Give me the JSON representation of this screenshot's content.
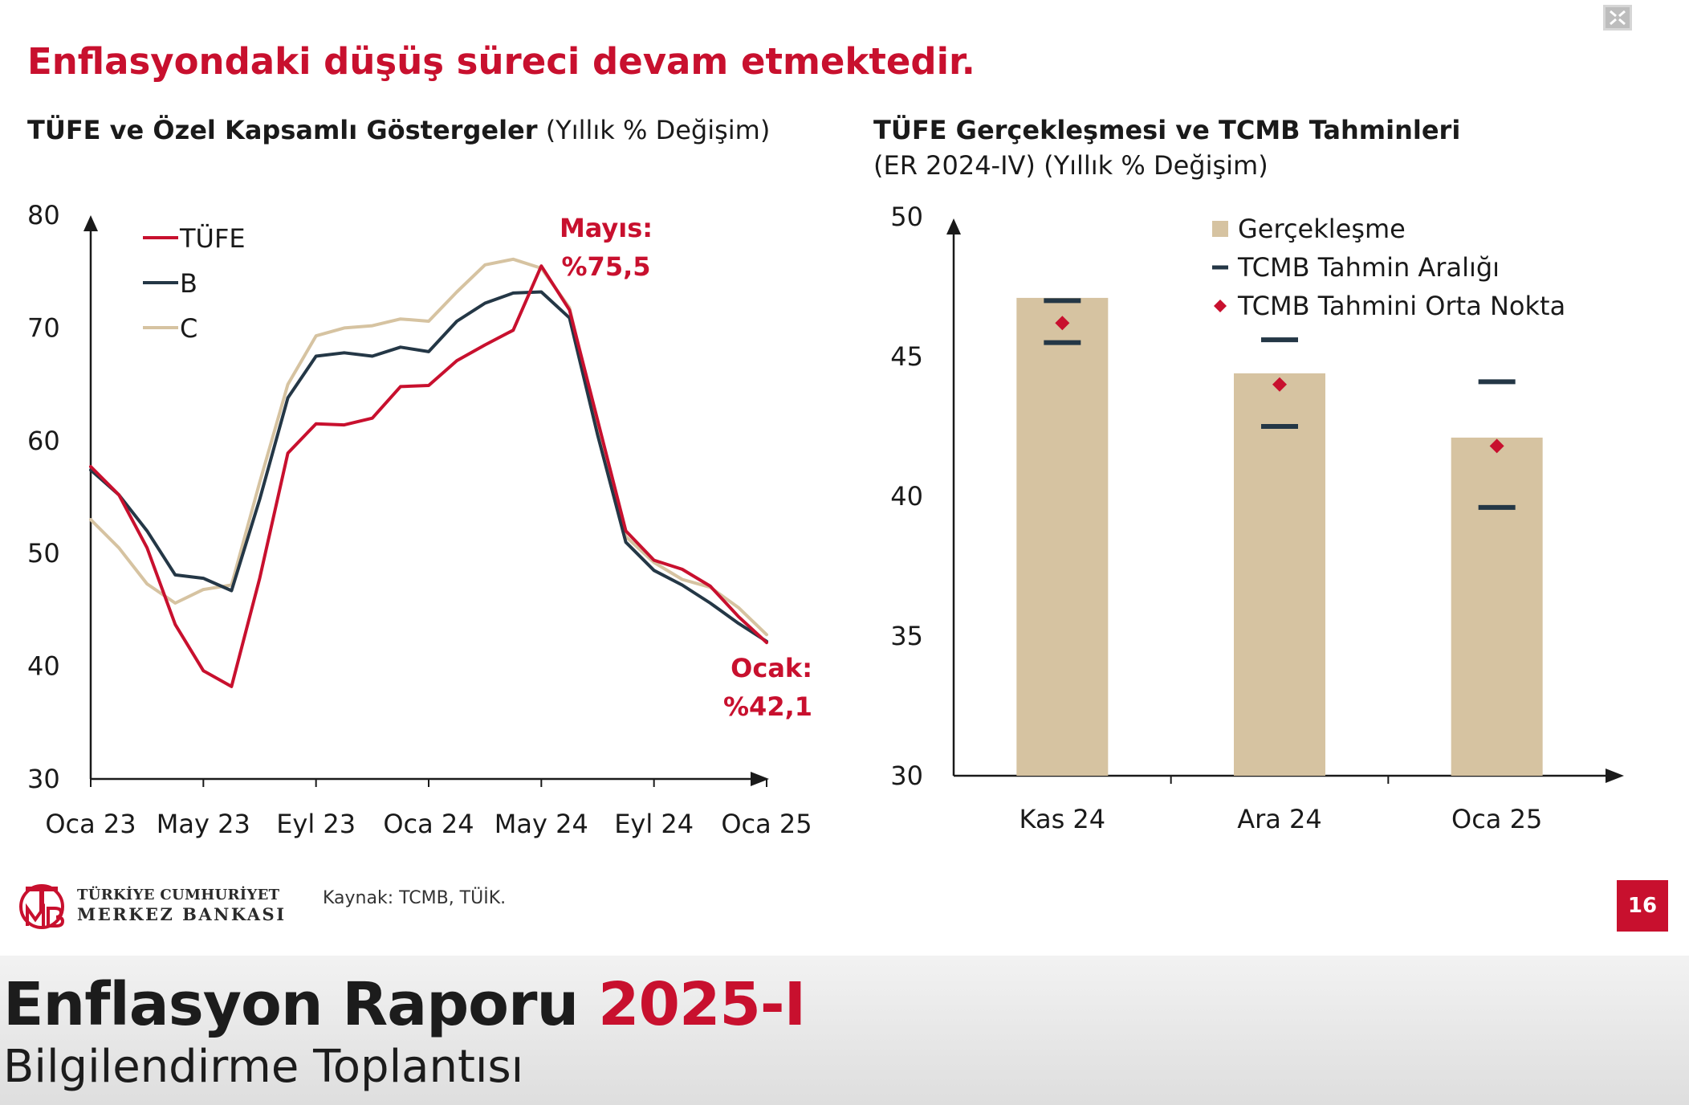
{
  "headline": "Enflasyondaki düşüş süreci devam etmektedir.",
  "chart_data": [
    {
      "type": "line",
      "title_bold": "TÜFE ve Özel Kapsamlı Göstergeler",
      "title_rest": "(Yıllık % Değişim)",
      "ylim": [
        30,
        80
      ],
      "yticks": [
        "80",
        "70",
        "60",
        "50",
        "40",
        "30"
      ],
      "ytick_values": [
        80,
        70,
        60,
        50,
        40,
        30
      ],
      "xticks": [
        "Oca 23",
        "May 23",
        "Eyl 23",
        "Oca 24",
        "May 24",
        "Eyl 24",
        "Oca 25"
      ],
      "xtick_index": [
        0,
        4,
        8,
        12,
        16,
        20,
        24
      ],
      "x_count": 25,
      "legend_position": "top-left",
      "series": [
        {
          "name": "C",
          "color": "#d6c3a1",
          "values": [
            53.0,
            50.5,
            47.3,
            45.6,
            46.8,
            47.2,
            56.3,
            65.0,
            69.3,
            70.0,
            70.2,
            70.8,
            70.6,
            73.2,
            75.6,
            76.1,
            75.3,
            71.8,
            61.1,
            51.5,
            49.2,
            47.7,
            47.0,
            45.2,
            42.8
          ]
        },
        {
          "name": "B",
          "color": "#243746",
          "values": [
            57.4,
            55.2,
            52.0,
            48.1,
            47.8,
            46.7,
            54.8,
            63.8,
            67.5,
            67.8,
            67.5,
            68.3,
            67.9,
            70.6,
            72.2,
            73.1,
            73.2,
            70.9,
            60.5,
            51.0,
            48.5,
            47.2,
            45.6,
            43.8,
            42.2
          ]
        },
        {
          "name": "TÜFE",
          "color": "#c8102e",
          "values": [
            57.7,
            55.2,
            50.5,
            43.7,
            39.6,
            38.2,
            47.8,
            58.9,
            61.5,
            61.4,
            62.0,
            64.8,
            64.9,
            67.1,
            68.5,
            69.8,
            75.5,
            71.6,
            61.8,
            52.0,
            49.4,
            48.6,
            47.1,
            44.4,
            42.1
          ]
        }
      ],
      "annotations": [
        {
          "line1": "Mayıs:",
          "line2": "%75,5"
        },
        {
          "line1": "Ocak:",
          "line2": "%42,1"
        }
      ]
    },
    {
      "type": "bar",
      "title_line1": "TÜFE Gerçekleşmesi ve TCMB Tahminleri",
      "title_line2": "(ER 2024-IV) (Yıllık % Değişim)",
      "ylim": [
        30,
        50
      ],
      "yticks": [
        "50",
        "45",
        "40",
        "35",
        "30"
      ],
      "ytick_values": [
        50,
        45,
        40,
        35,
        30
      ],
      "categories": [
        "Kas 24",
        "Ara 24",
        "Oca 25"
      ],
      "legend_position": "top-right",
      "series": [
        {
          "name": "Gerçekleşme",
          "color": "#d6c3a1",
          "values": [
            47.1,
            44.4,
            42.1
          ]
        },
        {
          "name": "TCMB Tahmin Aralığı",
          "color": "#243746",
          "low": [
            45.5,
            42.5,
            39.6
          ],
          "high": [
            47.0,
            45.6,
            44.1
          ]
        },
        {
          "name": "TCMB Tahmini Orta Nokta",
          "color": "#c8102e",
          "values": [
            46.2,
            44.0,
            41.8
          ]
        }
      ]
    }
  ],
  "footer": {
    "logo_line1": "TÜRKİYE CUMHURİYET",
    "logo_line2": "MERKEZ BANKASI",
    "source": "Kaynak: TCMB, TÜİK.",
    "page_number": "16"
  },
  "banner": {
    "title": "Enflasyon Raporu ",
    "title_highlight": "2025-I",
    "subtitle": "Bilgilendirme Toplantısı"
  }
}
